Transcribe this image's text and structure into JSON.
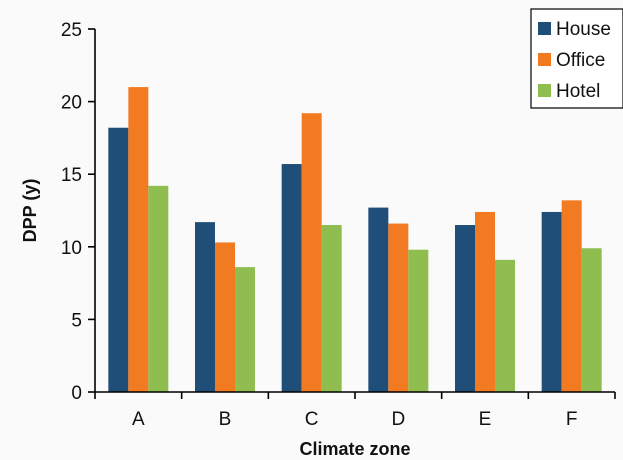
{
  "chart_data": {
    "type": "bar",
    "title": "",
    "xlabel": "Climate zone",
    "ylabel": "DPP (y)",
    "categories": [
      "A",
      "B",
      "C",
      "D",
      "E",
      "F"
    ],
    "series": [
      {
        "name": "House",
        "color": "#1f4e79",
        "values": [
          18.2,
          11.7,
          15.7,
          12.7,
          11.5,
          12.4
        ]
      },
      {
        "name": "Office",
        "color": "#f27b22",
        "values": [
          21.0,
          10.3,
          19.2,
          11.6,
          12.4,
          13.2
        ]
      },
      {
        "name": "Hotel",
        "color": "#8fbd4f",
        "values": [
          14.2,
          8.6,
          11.5,
          9.8,
          9.1,
          9.9
        ]
      }
    ],
    "ylim": [
      0,
      25
    ],
    "yticks": [
      0,
      5,
      10,
      15,
      20,
      25
    ],
    "grid": false,
    "legend_position": "top-right"
  }
}
